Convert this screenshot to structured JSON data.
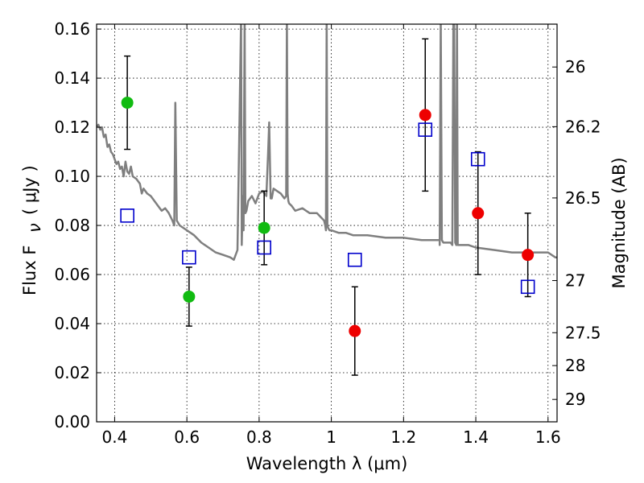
{
  "chart_data": {
    "type": "scatter",
    "xlabel": "Wavelength  λ (μm)",
    "ylabel_left": "Flux  F",
    "ylabel_left_sub": "ν",
    "ylabel_left_units": "( μJy )",
    "ylabel_right": "Magnitude (AB)",
    "xlim": [
      0.35,
      1.625
    ],
    "ylim": [
      0.0,
      0.162
    ],
    "grid": true,
    "x_ticks": [
      0.4,
      0.6,
      0.8,
      1.0,
      1.2,
      1.4,
      1.6
    ],
    "x_tick_labels": [
      "0.4",
      "0.6",
      "0.8",
      "1",
      "1.2",
      "1.4",
      "1.6"
    ],
    "y_ticks": [
      0.0,
      0.02,
      0.04,
      0.06,
      0.08,
      0.1,
      0.12,
      0.14,
      0.16
    ],
    "y_tick_labels": [
      "0.00",
      "0.02",
      "0.04",
      "0.06",
      "0.08",
      "0.10",
      "0.12",
      "0.14",
      "0.16"
    ],
    "right_ticks": [
      {
        "mag": 26.0,
        "label": "26"
      },
      {
        "mag": 26.2,
        "label": "26.2"
      },
      {
        "mag": 26.5,
        "label": "26.5"
      },
      {
        "mag": 27.0,
        "label": "27"
      },
      {
        "mag": 27.5,
        "label": "27.5"
      },
      {
        "mag": 28.0,
        "label": "28"
      },
      {
        "mag": 29.0,
        "label": "29"
      }
    ],
    "colors": {
      "green": "#11bb11",
      "red": "#ee0000",
      "square": "#0000cc",
      "model": "#7f7f7f",
      "errorbar": "#000000"
    },
    "points_green": [
      {
        "x": 0.435,
        "y": 0.13,
        "err": 0.019
      },
      {
        "x": 0.606,
        "y": 0.051,
        "err": 0.012
      },
      {
        "x": 0.814,
        "y": 0.079,
        "err": 0.015
      }
    ],
    "points_red": [
      {
        "x": 1.065,
        "y": 0.037,
        "err": 0.018
      },
      {
        "x": 1.26,
        "y": 0.125,
        "err": 0.031
      },
      {
        "x": 1.406,
        "y": 0.085,
        "err": 0.025
      },
      {
        "x": 1.544,
        "y": 0.068,
        "err": 0.017
      }
    ],
    "model_points": [
      {
        "x": 0.435,
        "y": 0.084
      },
      {
        "x": 0.606,
        "y": 0.067
      },
      {
        "x": 0.814,
        "y": 0.071
      },
      {
        "x": 1.065,
        "y": 0.066
      },
      {
        "x": 1.26,
        "y": 0.119
      },
      {
        "x": 1.406,
        "y": 0.107
      },
      {
        "x": 1.544,
        "y": 0.055
      }
    ],
    "model_spectrum": {
      "x": [
        0.35,
        0.355,
        0.36,
        0.365,
        0.37,
        0.375,
        0.38,
        0.385,
        0.39,
        0.395,
        0.4,
        0.405,
        0.41,
        0.415,
        0.42,
        0.425,
        0.43,
        0.435,
        0.44,
        0.445,
        0.45,
        0.46,
        0.47,
        0.475,
        0.48,
        0.49,
        0.5,
        0.51,
        0.52,
        0.53,
        0.54,
        0.55,
        0.56,
        0.565,
        0.568,
        0.572,
        0.58,
        0.6,
        0.62,
        0.64,
        0.66,
        0.68,
        0.7,
        0.72,
        0.73,
        0.74,
        0.75,
        0.752,
        0.755,
        0.757,
        0.76,
        0.762,
        0.765,
        0.77,
        0.78,
        0.79,
        0.8,
        0.81,
        0.82,
        0.825,
        0.828,
        0.832,
        0.835,
        0.84,
        0.85,
        0.86,
        0.87,
        0.875,
        0.877,
        0.879,
        0.881,
        0.883,
        0.89,
        0.9,
        0.92,
        0.94,
        0.96,
        0.98,
        0.983,
        0.985,
        0.987,
        0.989,
        0.991,
        0.995,
        1.0,
        1.02,
        1.04,
        1.06,
        1.08,
        1.1,
        1.15,
        1.2,
        1.25,
        1.3,
        1.3,
        1.303,
        1.306,
        1.31,
        1.32,
        1.33,
        1.335,
        1.338,
        1.34,
        1.343,
        1.346,
        1.348,
        1.35,
        1.38,
        1.4,
        1.45,
        1.5,
        1.55,
        1.6,
        1.62,
        1.625
      ],
      "y": [
        0.12,
        0.121,
        0.119,
        0.12,
        0.116,
        0.117,
        0.112,
        0.113,
        0.11,
        0.109,
        0.107,
        0.105,
        0.106,
        0.103,
        0.104,
        0.1,
        0.106,
        0.102,
        0.101,
        0.104,
        0.1,
        0.099,
        0.097,
        0.093,
        0.095,
        0.093,
        0.092,
        0.09,
        0.088,
        0.086,
        0.087,
        0.085,
        0.082,
        0.08,
        0.13,
        0.082,
        0.08,
        0.078,
        0.076,
        0.073,
        0.071,
        0.069,
        0.068,
        0.067,
        0.066,
        0.07,
        0.165,
        0.072,
        0.092,
        0.078,
        0.165,
        0.085,
        0.086,
        0.09,
        0.092,
        0.089,
        0.093,
        0.094,
        0.092,
        0.11,
        0.122,
        0.091,
        0.091,
        0.095,
        0.094,
        0.093,
        0.091,
        0.092,
        0.165,
        0.093,
        0.09,
        0.089,
        0.088,
        0.086,
        0.087,
        0.085,
        0.085,
        0.082,
        0.08,
        0.078,
        0.165,
        0.08,
        0.079,
        0.078,
        0.078,
        0.077,
        0.077,
        0.076,
        0.076,
        0.076,
        0.075,
        0.075,
        0.074,
        0.074,
        0.072,
        0.165,
        0.074,
        0.073,
        0.073,
        0.073,
        0.072,
        0.165,
        0.165,
        0.073,
        0.072,
        0.165,
        0.072,
        0.072,
        0.071,
        0.07,
        0.069,
        0.069,
        0.069,
        0.067,
        0.067
      ]
    }
  }
}
